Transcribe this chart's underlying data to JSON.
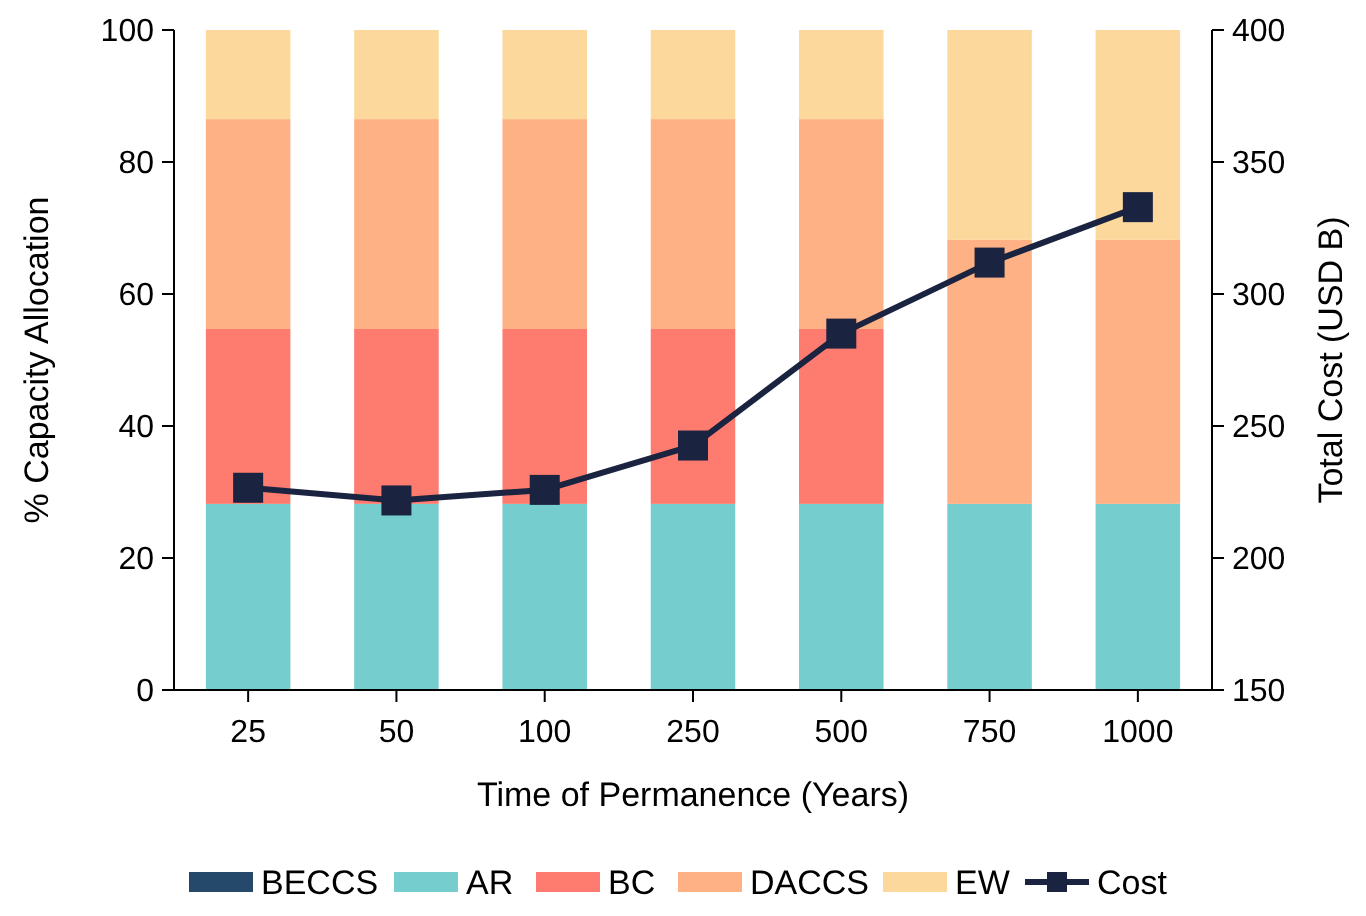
{
  "chart_data": {
    "type": "bar",
    "stacked": true,
    "xlabel": "Time of Permanence (Years)",
    "ylabel": "% Capacity Allocation",
    "y2label": "Total Cost (USD B)",
    "categories": [
      "25",
      "50",
      "100",
      "250",
      "500",
      "750",
      "1000"
    ],
    "series": [
      {
        "name": "BECCS",
        "color": "#24496b",
        "values": [
          0,
          0,
          0,
          0,
          0,
          0,
          0
        ]
      },
      {
        "name": "AR",
        "color": "#76cdce",
        "values": [
          28.2,
          28.2,
          28.2,
          28.2,
          28.2,
          28.2,
          28.2
        ]
      },
      {
        "name": "BC",
        "color": "#fe7b6f",
        "values": [
          26.5,
          26.5,
          26.5,
          26.5,
          26.5,
          0,
          0
        ]
      },
      {
        "name": "DACCS",
        "color": "#fdb185",
        "values": [
          31.8,
          31.8,
          31.8,
          31.8,
          31.8,
          40,
          40
        ]
      },
      {
        "name": "EW",
        "color": "#fdd89d",
        "values": [
          13.5,
          13.5,
          13.5,
          13.5,
          13.5,
          31.8,
          31.8
        ]
      },
      {
        "name": "Cost",
        "color": "#1a2340",
        "type": "line",
        "axis": "y2",
        "marker": "square",
        "line_style": "solid",
        "values": [
          226.6,
          221.8,
          225.8,
          242.6,
          285,
          311.9,
          332.9
        ]
      }
    ],
    "ylim": [
      0,
      100
    ],
    "yticks": [
      0,
      20,
      40,
      60,
      80,
      100
    ],
    "y2lim": [
      150,
      400
    ],
    "y2ticks": [
      150,
      200,
      250,
      300,
      350,
      400
    ],
    "grid": false,
    "legend": "bottom"
  }
}
